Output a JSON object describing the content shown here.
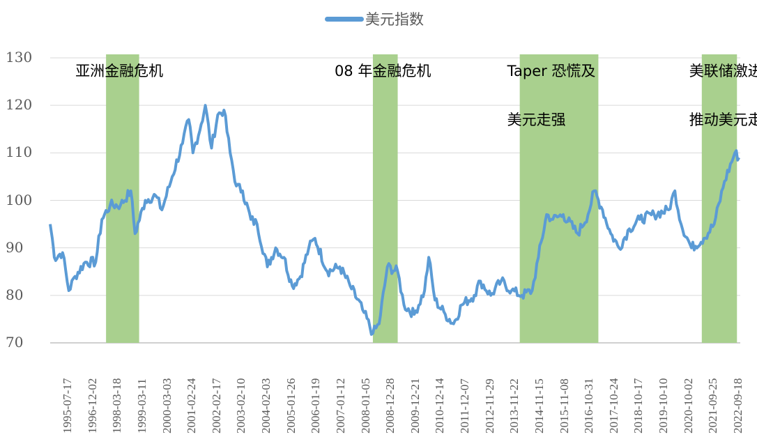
{
  "chart_data": {
    "type": "line",
    "title": "",
    "xlabel": "",
    "ylabel": "",
    "ylim": [
      70,
      130
    ],
    "yticks": [
      "130",
      "120",
      "110",
      "100",
      "90",
      "80",
      "70"
    ],
    "grid": true,
    "legend_position": "top",
    "xticks": [
      "1995-07-17",
      "1996-12-02",
      "1998-03-18",
      "1999-03-11",
      "2000-03-03",
      "2001-02-24",
      "2002-02-17",
      "2003-02-10",
      "2004-02-03",
      "2005-01-26",
      "2006-01-19",
      "2007-01-12",
      "2008-01-05",
      "2008-12-28",
      "2009-12-21",
      "2010-12-14",
      "2011-12-07",
      "2012-11-29",
      "2013-11-22",
      "2014-11-15",
      "2015-11-08",
      "2016-10-31",
      "2017-10-24",
      "2018-10-17",
      "2019-10-10",
      "2020-10-02",
      "2021-09-25",
      "2022-09-18"
    ],
    "series": [
      {
        "name": "美元指数",
        "color": "#5B9BD5",
        "points": [
          [
            "1995-01",
            95
          ],
          [
            "1995-02",
            92
          ],
          [
            "1995-03",
            88
          ],
          [
            "1995-07",
            89
          ],
          [
            "1995-10",
            81
          ],
          [
            "1996-01",
            84
          ],
          [
            "1996-06",
            87
          ],
          [
            "1996-11",
            87
          ],
          [
            "1997-02",
            96
          ],
          [
            "1997-06",
            99
          ],
          [
            "1997-11",
            99
          ],
          [
            "1998-04",
            102
          ],
          [
            "1998-06",
            93
          ],
          [
            "1998-11",
            100
          ],
          [
            "1999-04",
            101
          ],
          [
            "1999-07",
            98
          ],
          [
            "1999-12",
            105
          ],
          [
            "2000-05",
            112
          ],
          [
            "2000-08",
            117
          ],
          [
            "2000-10",
            110
          ],
          [
            "2001-02",
            116
          ],
          [
            "2001-04",
            120
          ],
          [
            "2001-07",
            111
          ],
          [
            "2001-10",
            118
          ],
          [
            "2002-01",
            119
          ],
          [
            "2002-04",
            110
          ],
          [
            "2002-07",
            103
          ],
          [
            "2002-10",
            102
          ],
          [
            "2003-02",
            96
          ],
          [
            "2003-05",
            95
          ],
          [
            "2003-10",
            86
          ],
          [
            "2004-02",
            90
          ],
          [
            "2004-06",
            88
          ],
          [
            "2004-10",
            82
          ],
          [
            "2005-02",
            84
          ],
          [
            "2005-06",
            90
          ],
          [
            "2005-09",
            92
          ],
          [
            "2006-03",
            85
          ],
          [
            "2006-09",
            86
          ],
          [
            "2007-02",
            82
          ],
          [
            "2007-08",
            77
          ],
          [
            "2008-01",
            72
          ],
          [
            "2008-04",
            74
          ],
          [
            "2008-08",
            86
          ],
          [
            "2009-01",
            85
          ],
          [
            "2009-04",
            78
          ],
          [
            "2009-09",
            76
          ],
          [
            "2010-02",
            81
          ],
          [
            "2010-04",
            88
          ],
          [
            "2010-07",
            79
          ],
          [
            "2010-12",
            76
          ],
          [
            "2011-04",
            74
          ],
          [
            "2011-08",
            78
          ],
          [
            "2012-02",
            80
          ],
          [
            "2012-05",
            83
          ],
          [
            "2012-10",
            80
          ],
          [
            "2013-03",
            83
          ],
          [
            "2013-08",
            81
          ],
          [
            "2014-01",
            80
          ],
          [
            "2014-06",
            81
          ],
          [
            "2014-09",
            88
          ],
          [
            "2015-01",
            97
          ],
          [
            "2015-04",
            96
          ],
          [
            "2015-09",
            97
          ],
          [
            "2016-04",
            93
          ],
          [
            "2016-09",
            97
          ],
          [
            "2016-12",
            102
          ],
          [
            "2017-04",
            98
          ],
          [
            "2017-08",
            93
          ],
          [
            "2017-12",
            90
          ],
          [
            "2018-05",
            94
          ],
          [
            "2018-10",
            96
          ],
          [
            "2019-05",
            97
          ],
          [
            "2019-12",
            98
          ],
          [
            "2020-03",
            102
          ],
          [
            "2020-06",
            95
          ],
          [
            "2020-11",
            90
          ],
          [
            "2021-05",
            92
          ],
          [
            "2021-10",
            95
          ],
          [
            "2022-03",
            104
          ],
          [
            "2022-08",
            110
          ],
          [
            "2022-10",
            109
          ]
        ]
      }
    ],
    "shaded_periods": [
      {
        "start": "1997-04",
        "end": "1998-08",
        "label_lines": [
          "亚洲金融危机"
        ]
      },
      {
        "start": "2008-01",
        "end": "2009-01",
        "label_lines": [
          "08 年金融危机"
        ]
      },
      {
        "start": "2013-12",
        "end": "2017-02",
        "label_lines": [
          "Taper 恐慌及",
          "美元走强"
        ]
      },
      {
        "start": "2021-04",
        "end": "2022-09",
        "label_lines": [
          "美联储激进收紧",
          "推动美元走强"
        ]
      }
    ],
    "shade_color": "#A9D08E"
  }
}
